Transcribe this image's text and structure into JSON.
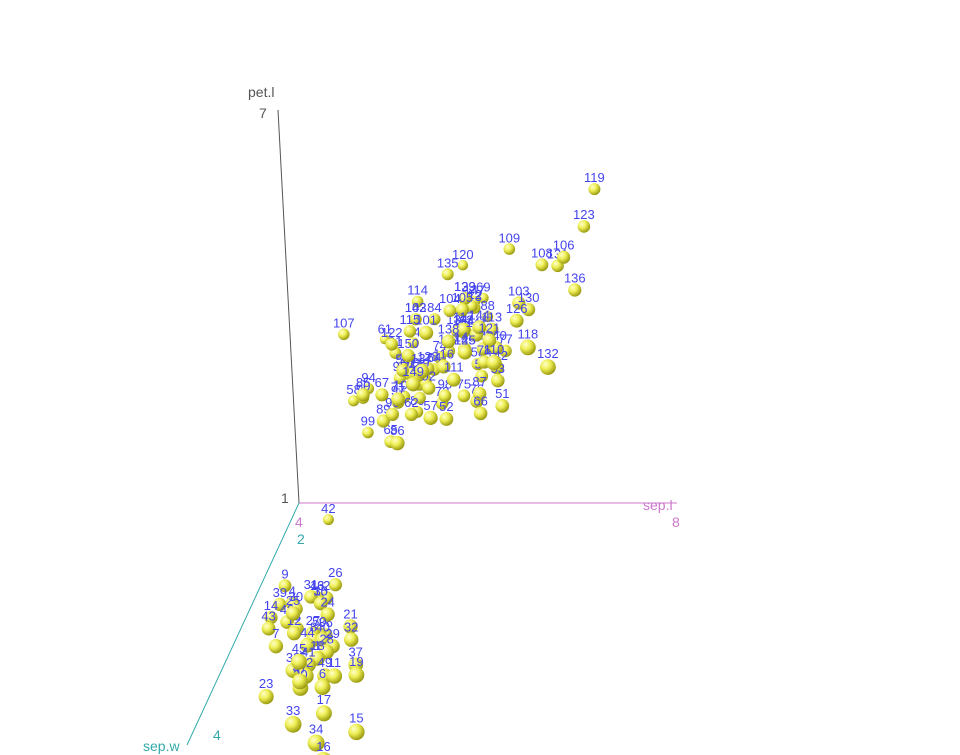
{
  "chart_data": {
    "type": "scatter",
    "projection": "3d",
    "axes": {
      "x": {
        "label": "sep.l",
        "ticks": [
          "4",
          "8"
        ],
        "color": "#cc77cc"
      },
      "y": {
        "label": "sep.w",
        "ticks": [
          "2",
          "4"
        ],
        "color": "#33aaaa"
      },
      "z": {
        "label": "pet.l",
        "ticks": [
          "1",
          "7"
        ],
        "color": "#555555"
      }
    },
    "marker_color": "#eeee55",
    "label_color": "#4444ee",
    "points": [
      {
        "id": "119",
        "x": 7.7,
        "y": 2.6,
        "z": 6.9
      },
      {
        "id": "123",
        "x": 7.7,
        "y": 2.8,
        "z": 6.7
      },
      {
        "id": "106",
        "x": 7.6,
        "y": 3.0,
        "z": 6.6
      },
      {
        "id": "118",
        "x": 7.7,
        "y": 3.8,
        "z": 6.7
      },
      {
        "id": "132",
        "x": 7.9,
        "y": 3.8,
        "z": 6.4
      },
      {
        "id": "108",
        "x": 7.3,
        "y": 2.9,
        "z": 6.3
      },
      {
        "id": "131",
        "x": 7.4,
        "y": 2.8,
        "z": 6.1
      },
      {
        "id": "136",
        "x": 7.7,
        "y": 3.0,
        "z": 6.1
      },
      {
        "id": "110",
        "x": 7.2,
        "y": 3.6,
        "z": 6.1
      },
      {
        "id": "126",
        "x": 7.2,
        "y": 3.2,
        "z": 6.0
      },
      {
        "id": "103",
        "x": 7.1,
        "y": 3.0,
        "z": 5.9
      },
      {
        "id": "130",
        "x": 7.2,
        "y": 3.0,
        "z": 5.8
      },
      {
        "id": "101",
        "x": 6.3,
        "y": 3.3,
        "z": 6.0
      },
      {
        "id": "109",
        "x": 6.7,
        "y": 2.5,
        "z": 5.8
      },
      {
        "id": "144",
        "x": 6.8,
        "y": 3.2,
        "z": 5.9
      },
      {
        "id": "105",
        "x": 6.5,
        "y": 3.0,
        "z": 5.8
      },
      {
        "id": "121",
        "x": 6.9,
        "y": 3.2,
        "z": 5.7
      },
      {
        "id": "125",
        "x": 6.7,
        "y": 3.3,
        "z": 5.7
      },
      {
        "id": "113",
        "x": 6.8,
        "y": 3.0,
        "z": 5.5
      },
      {
        "id": "140",
        "x": 6.9,
        "y": 3.1,
        "z": 5.4
      },
      {
        "id": "135",
        "x": 6.1,
        "y": 2.6,
        "z": 5.6
      },
      {
        "id": "104",
        "x": 6.3,
        "y": 2.9,
        "z": 5.6
      },
      {
        "id": "129",
        "x": 6.4,
        "y": 2.8,
        "z": 5.6
      },
      {
        "id": "137",
        "x": 6.3,
        "y": 3.4,
        "z": 5.6
      },
      {
        "id": "117",
        "x": 6.5,
        "y": 3.0,
        "z": 5.5
      },
      {
        "id": "148",
        "x": 6.5,
        "y": 3.0,
        "z": 5.2
      },
      {
        "id": "146",
        "x": 6.7,
        "y": 3.0,
        "z": 5.2
      },
      {
        "id": "142",
        "x": 6.9,
        "y": 3.1,
        "z": 5.1
      },
      {
        "id": "141",
        "x": 6.7,
        "y": 3.1,
        "z": 5.6
      },
      {
        "id": "149",
        "x": 6.2,
        "y": 3.4,
        "z": 5.4
      },
      {
        "id": "116",
        "x": 6.4,
        "y": 3.2,
        "z": 5.3
      },
      {
        "id": "111",
        "x": 6.5,
        "y": 3.2,
        "z": 5.1
      },
      {
        "id": "112",
        "x": 6.4,
        "y": 2.7,
        "z": 5.3
      },
      {
        "id": "120",
        "x": 6.0,
        "y": 2.2,
        "z": 5.0
      },
      {
        "id": "124",
        "x": 6.3,
        "y": 2.7,
        "z": 4.9
      },
      {
        "id": "134",
        "x": 6.3,
        "y": 2.8,
        "z": 5.1
      },
      {
        "id": "114",
        "x": 5.7,
        "y": 2.5,
        "z": 5.0
      },
      {
        "id": "102",
        "x": 5.8,
        "y": 2.7,
        "z": 5.1
      },
      {
        "id": "143",
        "x": 5.8,
        "y": 2.7,
        "z": 5.1
      },
      {
        "id": "115",
        "x": 5.8,
        "y": 2.8,
        "z": 5.1
      },
      {
        "id": "122",
        "x": 5.6,
        "y": 2.8,
        "z": 4.9
      },
      {
        "id": "128",
        "x": 6.1,
        "y": 3.0,
        "z": 4.9
      },
      {
        "id": "127",
        "x": 6.2,
        "y": 2.8,
        "z": 4.8
      },
      {
        "id": "139",
        "x": 6.0,
        "y": 3.0,
        "z": 4.8
      },
      {
        "id": "138",
        "x": 6.4,
        "y": 3.1,
        "z": 5.5
      },
      {
        "id": "150",
        "x": 5.9,
        "y": 3.0,
        "z": 5.1
      },
      {
        "id": "147",
        "x": 6.3,
        "y": 2.5,
        "z": 5.0
      },
      {
        "id": "145",
        "x": 6.7,
        "y": 3.3,
        "z": 5.7
      },
      {
        "id": "133",
        "x": 6.4,
        "y": 2.8,
        "z": 5.6
      },
      {
        "id": "107",
        "x": 4.9,
        "y": 2.5,
        "z": 4.5
      },
      {
        "id": "85",
        "x": 5.4,
        "y": 3.0,
        "z": 4.5
      },
      {
        "id": "91",
        "x": 5.5,
        "y": 2.6,
        "z": 4.4
      },
      {
        "id": "56",
        "x": 5.7,
        "y": 2.8,
        "z": 4.5
      },
      {
        "id": "71",
        "x": 5.9,
        "y": 3.2,
        "z": 4.8
      },
      {
        "id": "73",
        "x": 6.3,
        "y": 2.5,
        "z": 4.9
      },
      {
        "id": "78",
        "x": 6.7,
        "y": 3.0,
        "z": 5.0
      },
      {
        "id": "84",
        "x": 6.0,
        "y": 2.7,
        "z": 5.1
      },
      {
        "id": "55",
        "x": 6.5,
        "y": 2.8,
        "z": 4.6
      },
      {
        "id": "59",
        "x": 6.6,
        "y": 2.9,
        "z": 4.6
      },
      {
        "id": "87",
        "x": 6.7,
        "y": 3.1,
        "z": 4.7
      },
      {
        "id": "53",
        "x": 6.9,
        "y": 3.1,
        "z": 4.9
      },
      {
        "id": "77",
        "x": 6.8,
        "y": 2.8,
        "z": 4.8
      },
      {
        "id": "51",
        "x": 7.0,
        "y": 3.2,
        "z": 4.7
      },
      {
        "id": "57",
        "x": 6.3,
        "y": 3.3,
        "z": 4.7
      },
      {
        "id": "52",
        "x": 6.4,
        "y": 3.2,
        "z": 4.5
      },
      {
        "id": "76",
        "x": 6.6,
        "y": 3.0,
        "z": 4.4
      },
      {
        "id": "66",
        "x": 6.7,
        "y": 3.1,
        "z": 4.4
      },
      {
        "id": "64",
        "x": 6.1,
        "y": 2.9,
        "z": 4.7
      },
      {
        "id": "92",
        "x": 6.1,
        "y": 3.0,
        "z": 4.6
      },
      {
        "id": "98",
        "x": 6.2,
        "y": 2.9,
        "z": 4.3
      },
      {
        "id": "62",
        "x": 5.9,
        "y": 3.0,
        "z": 4.2
      },
      {
        "id": "86",
        "x": 6.0,
        "y": 3.4,
        "z": 4.5
      },
      {
        "id": "79",
        "x": 6.0,
        "y": 2.9,
        "z": 4.5
      },
      {
        "id": "72",
        "x": 6.1,
        "y": 2.8,
        "z": 4.0
      },
      {
        "id": "89",
        "x": 5.6,
        "y": 3.0,
        "z": 4.1
      },
      {
        "id": "96",
        "x": 5.7,
        "y": 3.0,
        "z": 4.2
      },
      {
        "id": "97",
        "x": 5.7,
        "y": 2.9,
        "z": 4.2
      },
      {
        "id": "100",
        "x": 5.7,
        "y": 2.8,
        "z": 4.1
      },
      {
        "id": "95",
        "x": 5.6,
        "y": 2.7,
        "z": 4.2
      },
      {
        "id": "67",
        "x": 5.6,
        "y": 3.0,
        "z": 4.5
      },
      {
        "id": "83",
        "x": 5.8,
        "y": 2.7,
        "z": 3.9
      },
      {
        "id": "93",
        "x": 5.8,
        "y": 2.6,
        "z": 4.0
      },
      {
        "id": "68",
        "x": 5.8,
        "y": 2.7,
        "z": 4.1
      },
      {
        "id": "54",
        "x": 5.5,
        "y": 2.3,
        "z": 4.0
      },
      {
        "id": "90",
        "x": 5.5,
        "y": 2.5,
        "z": 4.0
      },
      {
        "id": "81",
        "x": 5.5,
        "y": 2.4,
        "z": 3.8
      },
      {
        "id": "82",
        "x": 5.5,
        "y": 2.4,
        "z": 3.7
      },
      {
        "id": "70",
        "x": 5.6,
        "y": 2.5,
        "z": 3.9
      },
      {
        "id": "63",
        "x": 6.0,
        "y": 2.2,
        "z": 4.0
      },
      {
        "id": "69",
        "x": 6.2,
        "y": 2.2,
        "z": 4.5
      },
      {
        "id": "88",
        "x": 6.3,
        "y": 2.3,
        "z": 4.4
      },
      {
        "id": "74",
        "x": 6.1,
        "y": 2.8,
        "z": 4.7
      },
      {
        "id": "75",
        "x": 6.4,
        "y": 2.9,
        "z": 4.3
      },
      {
        "id": "61",
        "x": 5.0,
        "y": 2.0,
        "z": 3.5
      },
      {
        "id": "60",
        "x": 5.2,
        "y": 2.7,
        "z": 3.9
      },
      {
        "id": "58",
        "x": 4.9,
        "y": 2.4,
        "z": 3.3
      },
      {
        "id": "94",
        "x": 5.0,
        "y": 2.3,
        "z": 3.3
      },
      {
        "id": "99",
        "x": 5.1,
        "y": 2.5,
        "z": 3.0
      },
      {
        "id": "65",
        "x": 5.6,
        "y": 2.9,
        "z": 3.6
      },
      {
        "id": "80",
        "x": 5.7,
        "y": 2.6,
        "z": 3.5
      },
      {
        "id": "42",
        "x": 4.5,
        "y": 2.3,
        "z": 1.3
      },
      {
        "id": "26",
        "x": 5.0,
        "y": 3.0,
        "z": 1.6
      },
      {
        "id": "9",
        "x": 4.4,
        "y": 2.9,
        "z": 1.4
      },
      {
        "id": "39",
        "x": 4.4,
        "y": 3.0,
        "z": 1.3
      },
      {
        "id": "4",
        "x": 4.6,
        "y": 3.1,
        "z": 1.5
      },
      {
        "id": "31",
        "x": 4.8,
        "y": 3.1,
        "z": 1.6
      },
      {
        "id": "30",
        "x": 4.7,
        "y": 3.2,
        "z": 1.6
      },
      {
        "id": "24",
        "x": 5.1,
        "y": 3.3,
        "z": 1.7
      },
      {
        "id": "13",
        "x": 4.8,
        "y": 3.0,
        "z": 1.4
      },
      {
        "id": "2",
        "x": 4.9,
        "y": 3.0,
        "z": 1.4
      },
      {
        "id": "10",
        "x": 4.9,
        "y": 3.1,
        "z": 1.5
      },
      {
        "id": "35",
        "x": 4.9,
        "y": 3.1,
        "z": 1.5
      },
      {
        "id": "46",
        "x": 4.8,
        "y": 3.0,
        "z": 1.4
      },
      {
        "id": "14",
        "x": 4.3,
        "y": 3.0,
        "z": 1.1
      },
      {
        "id": "43",
        "x": 4.4,
        "y": 3.2,
        "z": 1.3
      },
      {
        "id": "48",
        "x": 4.6,
        "y": 3.2,
        "z": 1.4
      },
      {
        "id": "3",
        "x": 4.7,
        "y": 3.2,
        "z": 1.3
      },
      {
        "id": "12",
        "x": 4.8,
        "y": 3.4,
        "z": 1.6
      },
      {
        "id": "7",
        "x": 4.6,
        "y": 3.4,
        "z": 1.4
      },
      {
        "id": "21",
        "x": 5.4,
        "y": 3.4,
        "z": 1.7
      },
      {
        "id": "32",
        "x": 5.4,
        "y": 3.4,
        "z": 1.5
      },
      {
        "id": "27",
        "x": 5.0,
        "y": 3.4,
        "z": 1.6
      },
      {
        "id": "25",
        "x": 4.8,
        "y": 3.4,
        "z": 1.9
      },
      {
        "id": "44",
        "x": 5.0,
        "y": 3.5,
        "z": 1.6
      },
      {
        "id": "36",
        "x": 5.0,
        "y": 3.2,
        "z": 1.2
      },
      {
        "id": "50",
        "x": 5.0,
        "y": 3.3,
        "z": 1.4
      },
      {
        "id": "8",
        "x": 5.0,
        "y": 3.4,
        "z": 1.5
      },
      {
        "id": "40",
        "x": 5.1,
        "y": 3.4,
        "z": 1.5
      },
      {
        "id": "28",
        "x": 5.2,
        "y": 3.5,
        "z": 1.5
      },
      {
        "id": "29",
        "x": 5.2,
        "y": 3.4,
        "z": 1.4
      },
      {
        "id": "18",
        "x": 5.1,
        "y": 3.5,
        "z": 1.4
      },
      {
        "id": "1",
        "x": 5.1,
        "y": 3.5,
        "z": 1.4
      },
      {
        "id": "41",
        "x": 5.0,
        "y": 3.5,
        "z": 1.3
      },
      {
        "id": "38",
        "x": 4.9,
        "y": 3.6,
        "z": 1.4
      },
      {
        "id": "5",
        "x": 5.0,
        "y": 3.6,
        "z": 1.4
      },
      {
        "id": "23",
        "x": 4.6,
        "y": 3.6,
        "z": 1.0
      },
      {
        "id": "49",
        "x": 5.3,
        "y": 3.7,
        "z": 1.5
      },
      {
        "id": "11",
        "x": 5.4,
        "y": 3.7,
        "z": 1.5
      },
      {
        "id": "37",
        "x": 5.5,
        "y": 3.5,
        "z": 1.3
      },
      {
        "id": "19",
        "x": 5.7,
        "y": 3.8,
        "z": 1.7
      },
      {
        "id": "22",
        "x": 5.1,
        "y": 3.7,
        "z": 1.5
      },
      {
        "id": "20",
        "x": 5.1,
        "y": 3.8,
        "z": 1.5
      },
      {
        "id": "47",
        "x": 5.1,
        "y": 3.8,
        "z": 1.6
      },
      {
        "id": "45",
        "x": 5.1,
        "y": 3.8,
        "z": 1.9
      },
      {
        "id": "6",
        "x": 5.4,
        "y": 3.9,
        "z": 1.7
      },
      {
        "id": "17",
        "x": 5.4,
        "y": 3.9,
        "z": 1.3
      },
      {
        "id": "33",
        "x": 5.2,
        "y": 4.1,
        "z": 1.5
      },
      {
        "id": "34",
        "x": 5.5,
        "y": 4.2,
        "z": 1.4
      },
      {
        "id": "15",
        "x": 5.8,
        "y": 4.0,
        "z": 1.2
      },
      {
        "id": "16",
        "x": 5.7,
        "y": 4.4,
        "z": 1.5
      }
    ]
  }
}
